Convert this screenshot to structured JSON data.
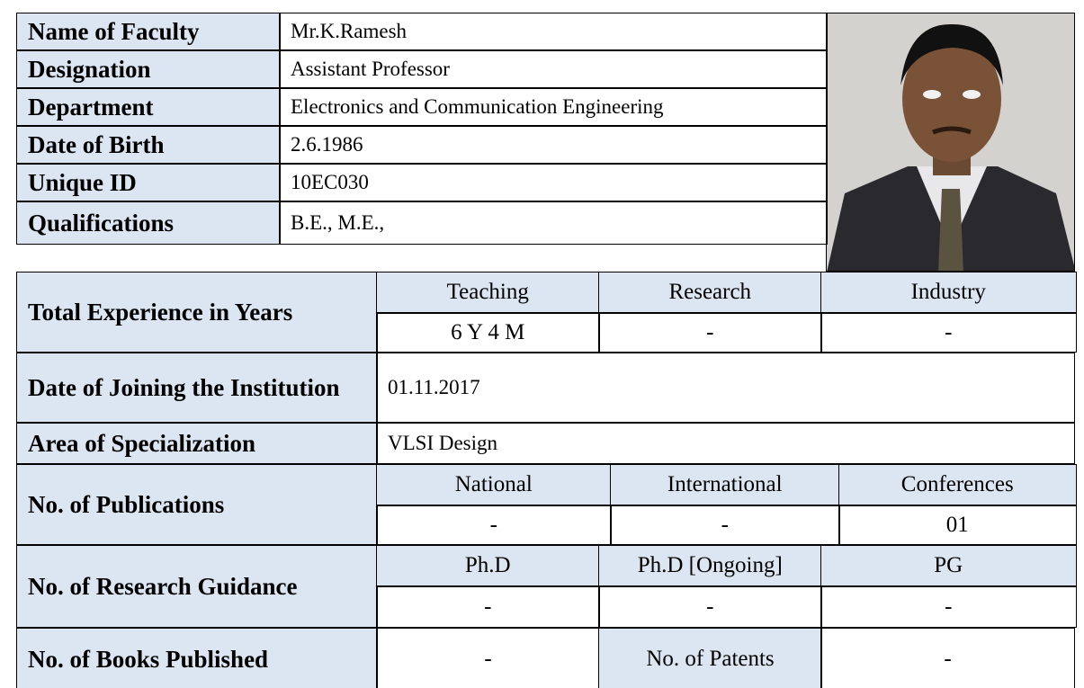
{
  "profile": [
    {
      "label": "Name of Faculty",
      "value": "Mr.K.Ramesh"
    },
    {
      "label": "Designation",
      "value": "Assistant Professor"
    },
    {
      "label": "Department",
      "value": "Electronics and Communication Engineering"
    },
    {
      "label": "Date of Birth",
      "value": "2.6.1986"
    },
    {
      "label": "Unique ID",
      "value": "10EC030"
    },
    {
      "label": "Qualifications",
      "value": "B.E., M.E.,"
    }
  ],
  "experience": {
    "label": "Total Experience in Years",
    "headers": [
      "Teaching",
      "Research",
      "Industry"
    ],
    "values": [
      "6 Y 4 M",
      "-",
      "-"
    ]
  },
  "joining": {
    "label": "Date of Joining the Institution",
    "value": "01.11.2017"
  },
  "specialization": {
    "label": "Area of Specialization",
    "value": "VLSI Design"
  },
  "publications": {
    "label": "No. of  Publications",
    "headers": [
      "National",
      "International",
      "Conferences"
    ],
    "values": [
      "-",
      "-",
      "01"
    ]
  },
  "research_guidance": {
    "label": "No. of Research Guidance",
    "headers": [
      "Ph.D",
      "Ph.D [Ongoing]",
      "PG"
    ],
    "values": [
      "-",
      "-",
      "-"
    ]
  },
  "books": {
    "label": "No. of Books Published",
    "value": "-",
    "patents_label": "No. of Patents",
    "patents_value": "-"
  }
}
